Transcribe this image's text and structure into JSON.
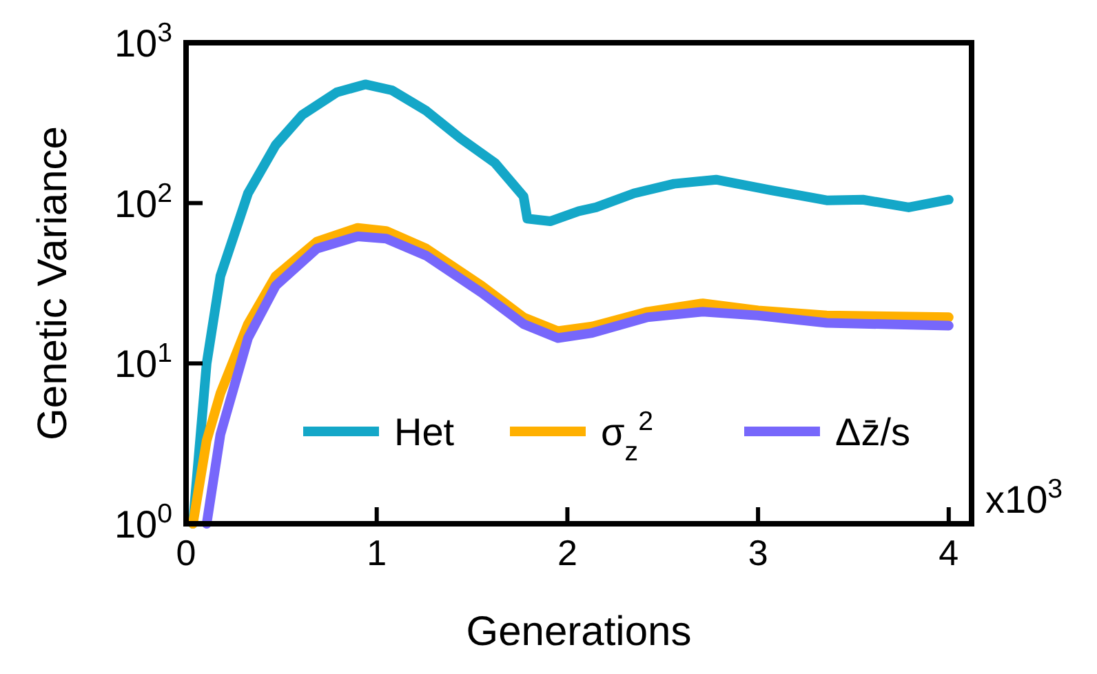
{
  "chart_data": {
    "type": "line",
    "xlabel": "Generations",
    "ylabel": "Genetic Variance",
    "annotations": [
      "x10$^{3}$"
    ],
    "log": "y",
    "grid": false,
    "legend": "bottom",
    "marker": "none",
    "line_style": "solid",
    "xlim": [
      0,
      4.12
    ],
    "xticks": [
      0,
      1,
      2,
      3,
      4
    ],
    "ylim": [
      1,
      1000
    ],
    "yticks": [
      {
        "value": 1,
        "label": "10$^{0}$"
      },
      {
        "value": 10,
        "label": "10$^{1}$"
      },
      {
        "value": 100,
        "label": "10$^{2}$"
      },
      {
        "value": 1000,
        "label": "10$^{3}$"
      }
    ],
    "series": [
      {
        "name": "Het",
        "color": "#14a7c8",
        "x": [
          0.036,
          0.108,
          0.18,
          0.325,
          0.47,
          0.61,
          0.79,
          0.94,
          1.08,
          1.26,
          1.44,
          1.62,
          1.77,
          1.79,
          1.91,
          2.06,
          2.15,
          2.35,
          2.56,
          2.78,
          3.07,
          3.36,
          3.55,
          3.79,
          4.0
        ],
        "values": [
          1,
          10,
          35,
          115,
          230,
          355,
          490,
          550,
          505,
          376,
          253,
          178,
          110,
          80,
          77,
          89,
          94,
          115,
          132,
          140,
          120,
          104,
          105,
          94,
          105
        ]
      },
      {
        "name": "σ$_{z}$$^{2}$",
        "color": "#ffb000",
        "x": [
          0.036,
          0.108,
          0.18,
          0.325,
          0.47,
          0.686,
          0.9,
          1.05,
          1.26,
          1.55,
          1.77,
          1.95,
          2.13,
          2.42,
          2.71,
          3.0,
          3.36,
          4.0
        ],
        "values": [
          1,
          3.3,
          6.5,
          17.6,
          35,
          57.5,
          70,
          67,
          52,
          30.5,
          19.4,
          15.9,
          17,
          21,
          23.7,
          21.4,
          19.9,
          19.4
        ]
      },
      {
        "name": "Δz̄/s",
        "color": "#7767fb",
        "x": [
          0.108,
          0.18,
          0.325,
          0.47,
          0.686,
          0.9,
          1.05,
          1.26,
          1.55,
          1.77,
          1.95,
          2.13,
          2.42,
          2.71,
          3.0,
          3.36,
          4.0
        ],
        "values": [
          1,
          3.6,
          14.4,
          30.5,
          52,
          62,
          60,
          47,
          27.6,
          17.6,
          14.4,
          15.5,
          19.4,
          21,
          19.9,
          17.9,
          17.2
        ]
      }
    ]
  }
}
